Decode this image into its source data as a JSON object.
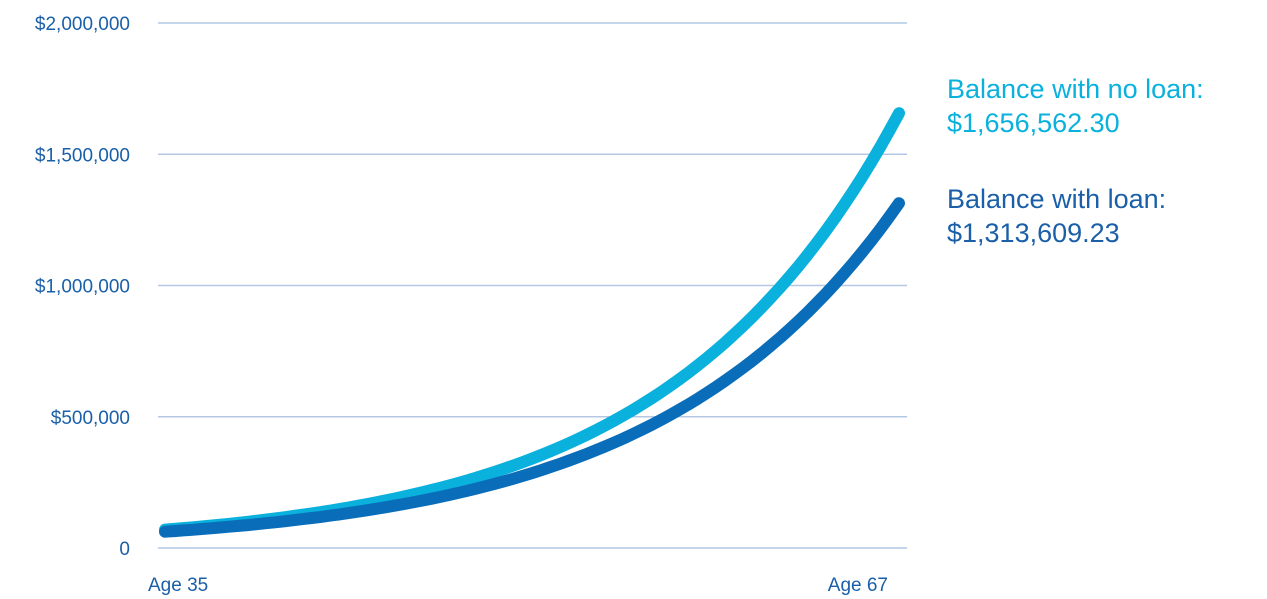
{
  "chart_data": {
    "type": "line",
    "x_categories": [
      "Age 35",
      "Age 67"
    ],
    "x_start": 35,
    "x_end": 67,
    "ylim": [
      0,
      2000000
    ],
    "y_ticks": [
      {
        "value": 0,
        "label": "0"
      },
      {
        "value": 500000,
        "label": "$500,000"
      },
      {
        "value": 1000000,
        "label": "$1,000,000"
      },
      {
        "value": 1500000,
        "label": "$1,500,000"
      },
      {
        "value": 2000000,
        "label": "$2,000,000"
      }
    ],
    "grid": true,
    "series": [
      {
        "name": "Balance with no loan",
        "color": "#0ab1dd",
        "start_value": 70000,
        "end_value": 1656562.3
      },
      {
        "name": "Balance with loan",
        "color": "#0a6db9",
        "start_value": 62000,
        "end_value": 1313609.23
      }
    ]
  },
  "legend": {
    "no_loan": {
      "label": "Balance with no loan:",
      "value": "$1,656,562.30",
      "color": "#0ab1dd"
    },
    "with_loan": {
      "label": "Balance with loan:",
      "value": "$1,313,609.23",
      "color": "#1a5fa8"
    }
  },
  "gridline_color": "#b4c8e4",
  "axis_text_color": "#1a5fa8"
}
